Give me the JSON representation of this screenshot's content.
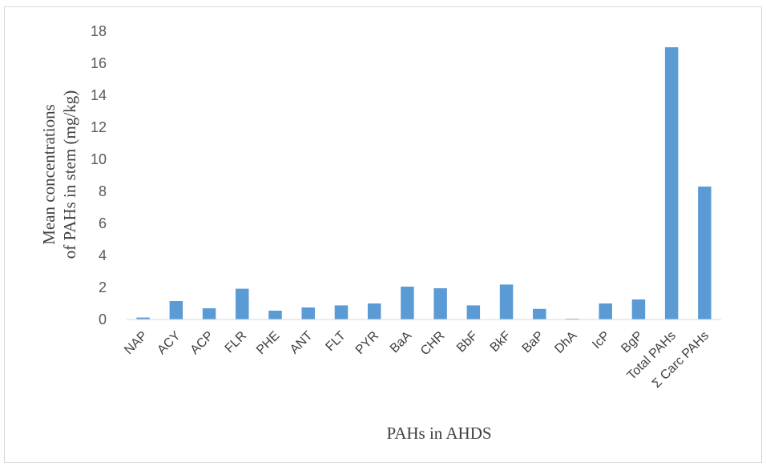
{
  "chart_data": {
    "type": "bar",
    "title": "",
    "xlabel": "PAHs in AHDS",
    "ylabel_lines": [
      "Mean concentrations",
      "of PAHs in stem (mg/kg)"
    ],
    "ylim": [
      0,
      18
    ],
    "yticks": [
      0,
      2,
      4,
      6,
      8,
      10,
      12,
      14,
      16,
      18
    ],
    "grid": false,
    "legend": "none",
    "bar_color": "#5b9bd5",
    "categories": [
      "NAP",
      "ACY",
      "ACP",
      "FLR",
      "PHE",
      "ANT",
      "FLT",
      "PYR",
      "BaA",
      "CHR",
      "BbF",
      "BkF",
      "BaP",
      "DhA",
      "IcP",
      "BgP",
      "Total PAHs",
      "Σ Carc PAHs"
    ],
    "values": [
      0.12,
      1.15,
      0.7,
      1.92,
      0.55,
      0.75,
      0.88,
      1.0,
      2.05,
      1.95,
      0.88,
      2.18,
      0.66,
      0.05,
      1.0,
      1.25,
      17.0,
      8.3
    ]
  }
}
